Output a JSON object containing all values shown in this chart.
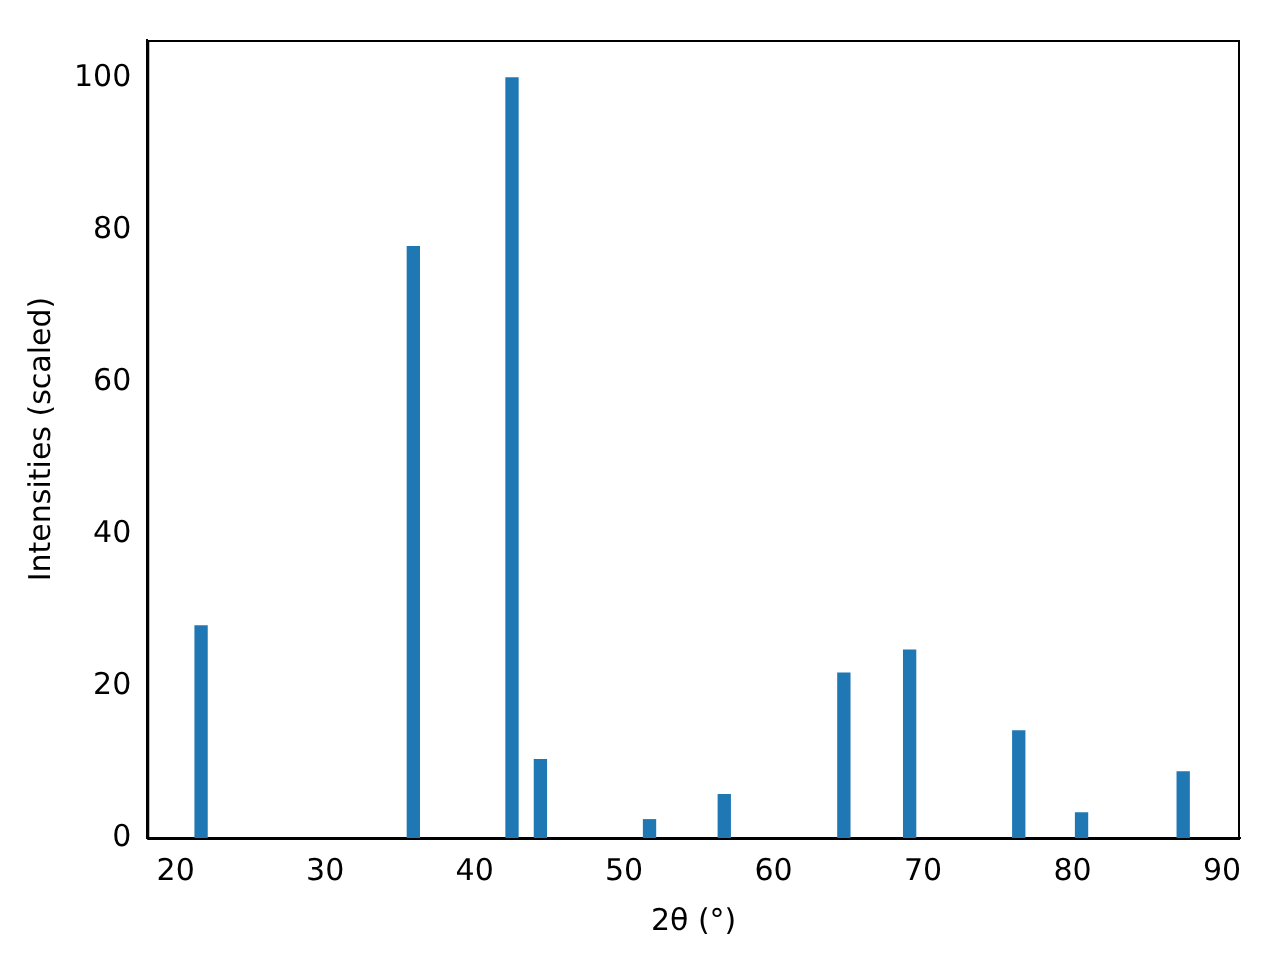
{
  "chart_data": {
    "type": "bar",
    "xlabel": "2θ (°)",
    "ylabel": "Intensities (scaled)",
    "x": [
      21.7,
      35.9,
      42.5,
      44.4,
      51.7,
      56.7,
      64.7,
      69.1,
      76.4,
      80.6,
      87.4
    ],
    "values": [
      27.9,
      77.8,
      100,
      10.3,
      2.4,
      5.7,
      21.7,
      24.7,
      14.1,
      3.3,
      8.7
    ],
    "color": "#1f77b4",
    "xlim": [
      18.1,
      91.2
    ],
    "xticks": [
      20,
      30,
      40,
      50,
      60,
      70,
      80,
      90
    ],
    "ylim": [
      0,
      105
    ],
    "yticks": [
      0,
      20,
      40,
      60,
      80,
      100
    ],
    "grid": false,
    "legend": false
  }
}
